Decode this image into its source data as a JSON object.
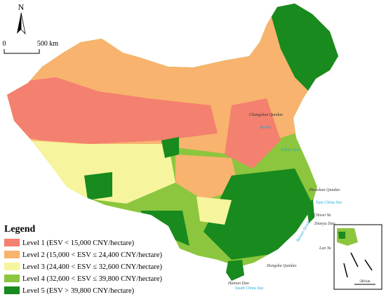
{
  "north_label": "N",
  "scale_bar": {
    "start": "0",
    "end": "500 km"
  },
  "legend": {
    "title": "Legend",
    "items": [
      {
        "label": "Level 1 (ESV < 15,000 CNY/hectare)",
        "color": "#f4806f"
      },
      {
        "label": "Level 2 (15,000 < ESV ≤ 24,400 CNY/hectare)",
        "color": "#f8b36e"
      },
      {
        "label": "Level 3 (24,400 < ESV ≤ 32,600 CNY/hectare)",
        "color": "#f6f59e"
      },
      {
        "label": "Level 4 (32,600 < ESV ≤ 39,800 CNY/hectare)",
        "color": "#8cc63e"
      },
      {
        "label": "Level 5 (ESV > 39,800 CNY/hectare)",
        "color": "#188a1e"
      }
    ]
  },
  "places": {
    "changshan": "Changshan Qundao",
    "bohai": "Bo Hai",
    "yellow_sea": "Yellow Sea",
    "zhoushan": "Zhoushan Qundao",
    "east_china_sea": "East China Sea",
    "chiwei": "Chiwei Yu",
    "diaoyu": "Diaoyu Dao",
    "taiwan_strait": "Taiwan Strait",
    "lanyu": "Lan Yu",
    "dongsha": "Dongsha Qundao",
    "hainan": "Hainan Dao",
    "south_china_sea": "South China Sea"
  },
  "inset": {
    "scale": "500 km"
  }
}
